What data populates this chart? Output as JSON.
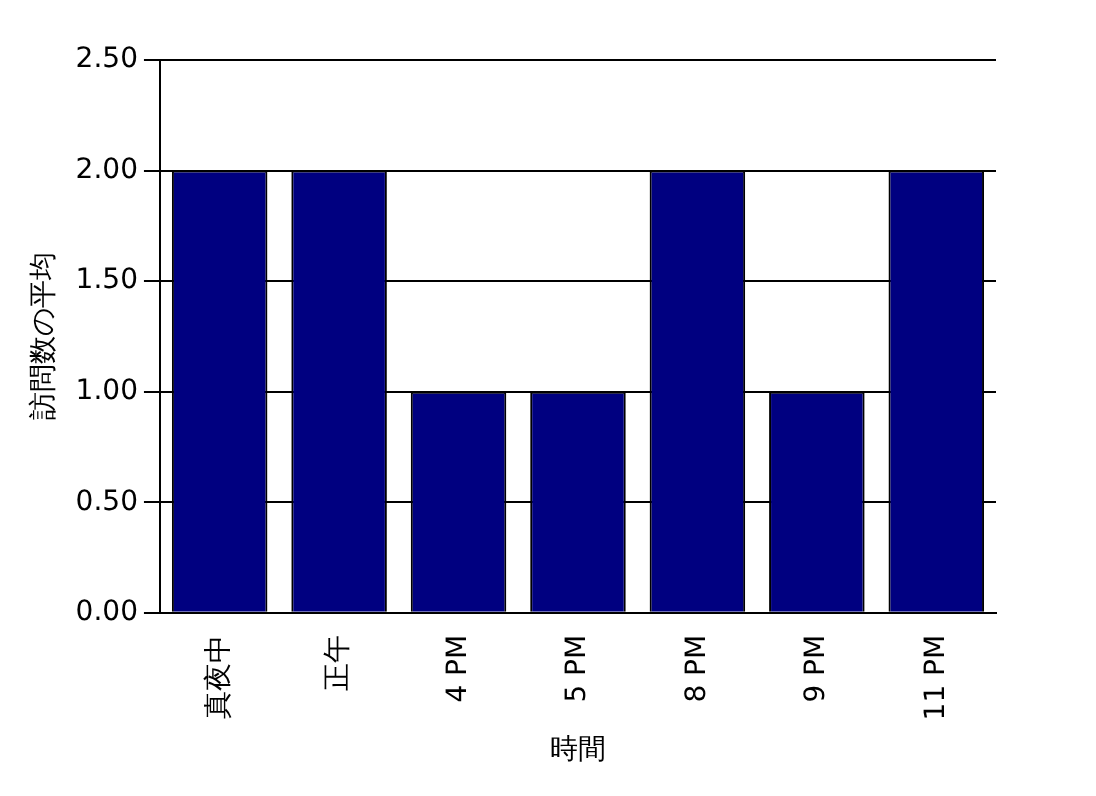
{
  "chart_data": {
    "type": "bar",
    "xlabel": "時間",
    "ylabel": "訪問数の平均",
    "categories": [
      "真夜中",
      "正午",
      "4 PM",
      "5 PM",
      "8 PM",
      "9 PM",
      "11 PM"
    ],
    "values": [
      2,
      2,
      1,
      1,
      2,
      1,
      2
    ],
    "color": "#000080",
    "ylim": [
      0,
      2.5
    ],
    "yticks": [
      {
        "value": 0,
        "label": "0.00"
      },
      {
        "value": 0.5,
        "label": "0.50"
      },
      {
        "value": 1,
        "label": "1.00"
      },
      {
        "value": 1.5,
        "label": "1.50"
      },
      {
        "value": 2,
        "label": "2.00"
      },
      {
        "value": 2.5,
        "label": "2.50"
      }
    ],
    "grid": "y"
  }
}
